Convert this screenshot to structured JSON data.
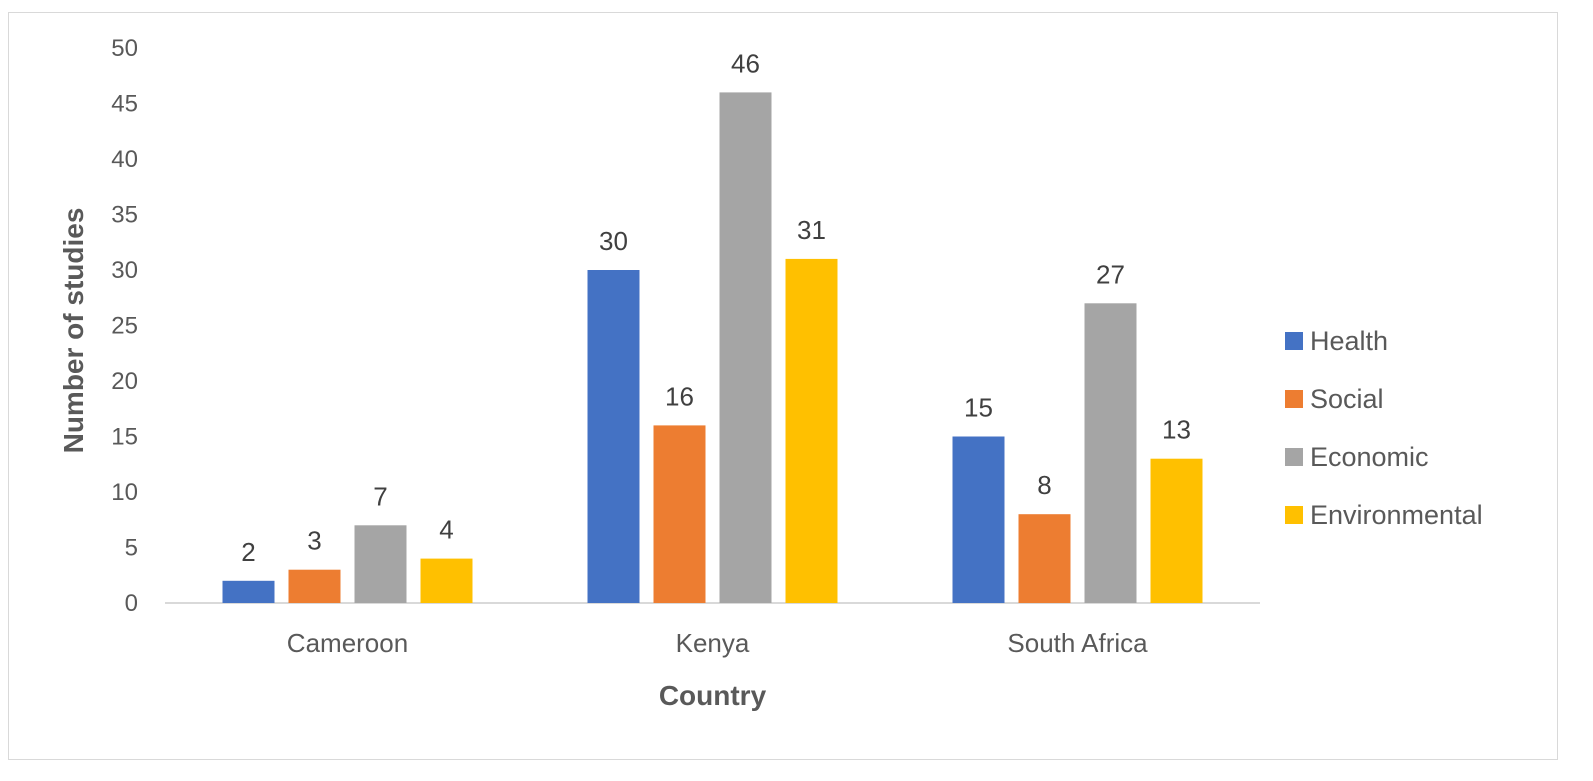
{
  "chart_data": {
    "type": "bar",
    "title": "",
    "xlabel": "Country",
    "ylabel": "Number of studies",
    "categories": [
      "Cameroon",
      "Kenya",
      "South Africa"
    ],
    "series": [
      {
        "name": "Health",
        "color": "#4472C4",
        "values": [
          2,
          30,
          15
        ]
      },
      {
        "name": "Social",
        "color": "#ED7D31",
        "values": [
          3,
          16,
          8
        ]
      },
      {
        "name": "Economic",
        "color": "#A5A5A5",
        "values": [
          7,
          46,
          27
        ]
      },
      {
        "name": "Environmental",
        "color": "#FFC000",
        "values": [
          4,
          31,
          13
        ]
      }
    ],
    "ylim": [
      0,
      50
    ],
    "yticks": [
      "0",
      "5",
      "10",
      "15",
      "20",
      "25",
      "30",
      "35",
      "40",
      "45",
      "50"
    ],
    "grid": false,
    "legend_position": "right",
    "data_labels": true
  }
}
